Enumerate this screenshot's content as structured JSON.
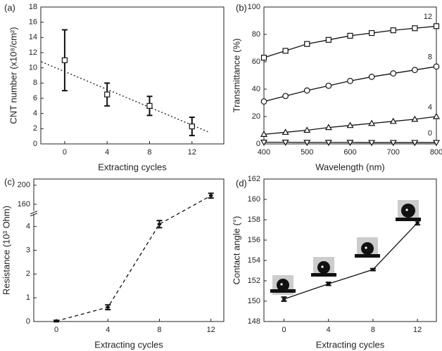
{
  "chart_data": [
    {
      "type": "scatter",
      "title": "(a)",
      "xlabel": "Extracting cycles",
      "ylabel": "CNT number (x10⁸/cm²)",
      "xlim": [
        -2.25,
        15
      ],
      "xticks": [
        0,
        4,
        8,
        12
      ],
      "ylim": [
        0,
        18
      ],
      "yticks": [
        0,
        2,
        4,
        6,
        8,
        10,
        12,
        14,
        16,
        18
      ],
      "series": [
        {
          "color": "#111111",
          "marker": "square",
          "x": [
            0,
            4,
            8,
            12
          ],
          "values": [
            11,
            6.5,
            5,
            2.3
          ],
          "errors": [
            4,
            1.5,
            1.25,
            1.2
          ]
        }
      ],
      "trendline": {
        "color": "#333333",
        "x": [
          -2.2,
          13.5
        ],
        "values": [
          10.8,
          1.6
        ]
      }
    },
    {
      "type": "line",
      "title": "(b)",
      "xlabel": "Wavelength (nm)",
      "ylabel": "Transmittance (%)",
      "xlim": [
        400,
        800
      ],
      "xticks": [
        400,
        500,
        600,
        700,
        800
      ],
      "ylim": [
        0,
        100
      ],
      "yticks": [
        0,
        20,
        40,
        60,
        80,
        100
      ],
      "series": [
        {
          "name": "12",
          "color": "#111111",
          "marker": "square",
          "x": [
            400,
            450,
            500,
            550,
            600,
            650,
            700,
            750,
            800
          ],
          "values": [
            63,
            68,
            73,
            76,
            79,
            81,
            83,
            84.5,
            86
          ]
        },
        {
          "name": "8",
          "color": "#111111",
          "marker": "circle",
          "x": [
            400,
            450,
            500,
            550,
            600,
            650,
            700,
            750,
            800
          ],
          "values": [
            31,
            35,
            39,
            42.5,
            46,
            49,
            51.5,
            54,
            56.5
          ]
        },
        {
          "name": "4",
          "color": "#111111",
          "marker": "triangle-up",
          "x": [
            400,
            450,
            500,
            550,
            600,
            650,
            700,
            750,
            800
          ],
          "values": [
            7,
            8.5,
            10,
            12,
            13.5,
            15,
            16.5,
            18,
            20
          ]
        },
        {
          "name": "0",
          "color": "#111111",
          "marker": "triangle-down",
          "x": [
            400,
            450,
            500,
            550,
            600,
            650,
            700,
            750,
            800
          ],
          "values": [
            1.2,
            1.2,
            1.1,
            1.1,
            1.1,
            1,
            1,
            1,
            1
          ]
        }
      ]
    },
    {
      "type": "line",
      "title": "(c)",
      "xlabel": "Extracting cycles",
      "ylabel": "Resistance (10³ Ohm)",
      "xlim": [
        -1.75,
        13
      ],
      "xticks": [
        0,
        4,
        8,
        12
      ],
      "ylim": [
        0,
        213
      ],
      "y_break": [
        4.5,
        147
      ],
      "yticks": [
        0,
        1,
        2,
        3,
        4,
        160,
        200
      ],
      "linestyle": "dashed",
      "series": [
        {
          "color": "#111111",
          "marker": "none",
          "x": [
            0,
            4,
            8,
            12
          ],
          "values": [
            0.02,
            0.6,
            4.1,
            178
          ],
          "errors": [
            0.03,
            0.1,
            0.15,
            5
          ]
        }
      ]
    },
    {
      "type": "line",
      "title": "(d)",
      "xlabel": "Extracting cycles",
      "ylabel": "Contact angle (°)",
      "xlim": [
        -1.8,
        13.7
      ],
      "xticks": [
        0,
        4,
        8,
        12
      ],
      "ylim": [
        148,
        162
      ],
      "yticks": [
        148,
        150,
        152,
        154,
        156,
        158,
        160,
        162
      ],
      "linestyle": "solid",
      "series": [
        {
          "color": "#111111",
          "marker": "none",
          "x": [
            0,
            4,
            8,
            12
          ],
          "values": [
            150.2,
            151.7,
            153.1,
            157.7
          ],
          "errors": [
            0.2,
            0.15,
            0.1,
            0.2
          ]
        }
      ]
    }
  ]
}
